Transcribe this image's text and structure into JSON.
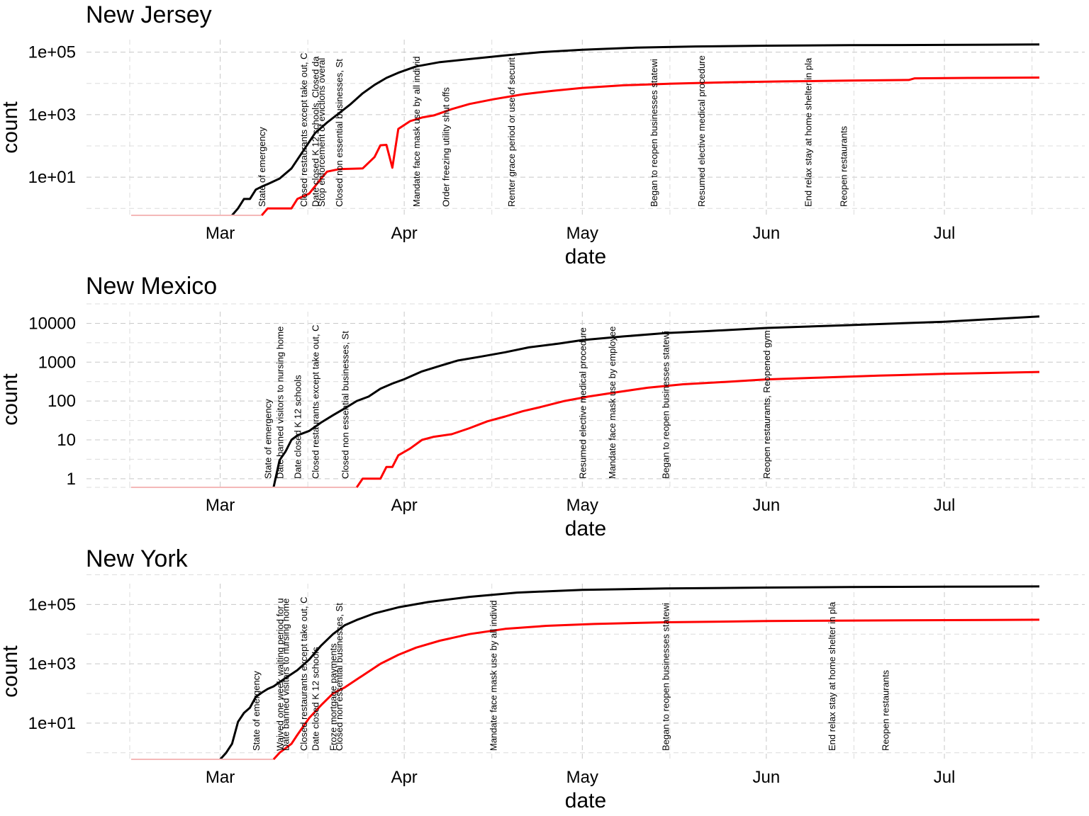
{
  "chart_data": [
    {
      "type": "line",
      "title": "New Jersey",
      "xlabel": "date",
      "ylabel": "count",
      "x_ticks": [
        "Mar",
        "Apr",
        "May",
        "Jun",
        "Jul"
      ],
      "y_scale": "log10",
      "y_ticks": [
        "1e+01",
        "1e+03",
        "1e+05"
      ],
      "ylim": [
        0.6,
        200000
      ],
      "xlim": [
        "2020-02-15",
        "2020-07-20"
      ],
      "grid": true,
      "series": [
        {
          "color": "#000000",
          "points": [
            [
              "2020-02-15",
              0.6
            ],
            [
              "2020-03-03",
              0.6
            ],
            [
              "2020-03-04",
              1
            ],
            [
              "2020-03-05",
              2
            ],
            [
              "2020-03-06",
              2
            ],
            [
              "2020-03-07",
              4
            ],
            [
              "2020-03-08",
              5
            ],
            [
              "2020-03-09",
              6
            ],
            [
              "2020-03-11",
              9
            ],
            [
              "2020-03-13",
              19
            ],
            [
              "2020-03-15",
              70
            ],
            [
              "2020-03-17",
              260
            ],
            [
              "2020-03-19",
              560
            ],
            [
              "2020-03-21",
              1100
            ],
            [
              "2020-03-23",
              2200
            ],
            [
              "2020-03-25",
              4800
            ],
            [
              "2020-03-27",
              9000
            ],
            [
              "2020-03-29",
              15000
            ],
            [
              "2020-03-31",
              22000
            ],
            [
              "2020-04-03",
              35000
            ],
            [
              "2020-04-07",
              48000
            ],
            [
              "2020-04-12",
              60000
            ],
            [
              "2020-04-18",
              79000
            ],
            [
              "2020-04-24",
              100000
            ],
            [
              "2020-05-01",
              120000
            ],
            [
              "2020-05-10",
              139000
            ],
            [
              "2020-05-20",
              152000
            ],
            [
              "2020-06-01",
              161000
            ],
            [
              "2020-06-15",
              167000
            ],
            [
              "2020-07-01",
              171000
            ],
            [
              "2020-07-17",
              176000
            ]
          ]
        },
        {
          "color": "#ff0000",
          "points": [
            [
              "2020-02-15",
              0.6
            ],
            [
              "2020-03-08",
              0.6
            ],
            [
              "2020-03-09",
              1
            ],
            [
              "2020-03-13",
              1
            ],
            [
              "2020-03-14",
              2
            ],
            [
              "2020-03-16",
              3
            ],
            [
              "2020-03-18",
              9
            ],
            [
              "2020-03-19",
              15
            ],
            [
              "2020-03-21",
              18
            ],
            [
              "2020-03-25",
              19
            ],
            [
              "2020-03-27",
              44
            ],
            [
              "2020-03-28",
              105
            ],
            [
              "2020-03-29",
              108
            ],
            [
              "2020-03-30",
              20
            ],
            [
              "2020-03-31",
              350
            ],
            [
              "2020-04-02",
              620
            ],
            [
              "2020-04-04",
              810
            ],
            [
              "2020-04-06",
              950
            ],
            [
              "2020-04-09",
              1500
            ],
            [
              "2020-04-12",
              2200
            ],
            [
              "2020-04-16",
              3100
            ],
            [
              "2020-04-21",
              4500
            ],
            [
              "2020-04-26",
              5800
            ],
            [
              "2020-05-01",
              7200
            ],
            [
              "2020-05-08",
              8700
            ],
            [
              "2020-05-16",
              9800
            ],
            [
              "2020-05-25",
              10800
            ],
            [
              "2020-06-04",
              11600
            ],
            [
              "2020-06-15",
              12300
            ],
            [
              "2020-06-25",
              12900
            ],
            [
              "2020-06-26",
              14500
            ],
            [
              "2020-07-05",
              15000
            ],
            [
              "2020-07-17",
              15400
            ]
          ]
        }
      ],
      "events": [
        {
          "date": "2020-03-08",
          "label": "State of emergency"
        },
        {
          "date": "2020-03-15",
          "label": "Closed restaurants except take out, C"
        },
        {
          "date": "2020-03-17",
          "label": "Date closed K 12 schools, Closed da"
        },
        {
          "date": "2020-03-18",
          "label": "Stop enforcement of evictions overal"
        },
        {
          "date": "2020-03-21",
          "label": "Closed non essential businesses, St"
        },
        {
          "date": "2020-04-03",
          "label": "Mandate face mask use by all individ"
        },
        {
          "date": "2020-04-08",
          "label": "Order freezing utility shut offs"
        },
        {
          "date": "2020-04-19",
          "label": "Renter grace period or use of securit"
        },
        {
          "date": "2020-05-13",
          "label": "Began to reopen businesses statewi"
        },
        {
          "date": "2020-05-21",
          "label": "Resumed elective medical procedure"
        },
        {
          "date": "2020-06-08",
          "label": "End relax stay at home shelter in pla"
        },
        {
          "date": "2020-06-14",
          "label": "Reopen restaurants"
        }
      ]
    },
    {
      "type": "line",
      "title": "New Mexico",
      "xlabel": "date",
      "ylabel": "count",
      "x_ticks": [
        "Mar",
        "Apr",
        "May",
        "Jun",
        "Jul"
      ],
      "y_scale": "log10",
      "y_ticks": [
        "1",
        "10",
        "100",
        "1000",
        "10000"
      ],
      "ylim": [
        0.6,
        30000
      ],
      "xlim": [
        "2020-02-15",
        "2020-07-20"
      ],
      "grid": true,
      "series": [
        {
          "color": "#000000",
          "points": [
            [
              "2020-02-15",
              0.6
            ],
            [
              "2020-03-10",
              0.6
            ],
            [
              "2020-03-11",
              3
            ],
            [
              "2020-03-12",
              5
            ],
            [
              "2020-03-13",
              10
            ],
            [
              "2020-03-14",
              13
            ],
            [
              "2020-03-16",
              17
            ],
            [
              "2020-03-18",
              28
            ],
            [
              "2020-03-20",
              43
            ],
            [
              "2020-03-22",
              65
            ],
            [
              "2020-03-24",
              100
            ],
            [
              "2020-03-26",
              130
            ],
            [
              "2020-03-28",
              208
            ],
            [
              "2020-03-30",
              281
            ],
            [
              "2020-04-01",
              363
            ],
            [
              "2020-04-04",
              580
            ],
            [
              "2020-04-07",
              800
            ],
            [
              "2020-04-10",
              1100
            ],
            [
              "2020-04-14",
              1400
            ],
            [
              "2020-04-18",
              1800
            ],
            [
              "2020-04-22",
              2400
            ],
            [
              "2020-04-27",
              3000
            ],
            [
              "2020-05-01",
              3700
            ],
            [
              "2020-05-08",
              4600
            ],
            [
              "2020-05-15",
              5600
            ],
            [
              "2020-05-22",
              6300
            ],
            [
              "2020-06-01",
              7600
            ],
            [
              "2020-06-15",
              9000
            ],
            [
              "2020-07-01",
              11000
            ],
            [
              "2020-07-17",
              15000
            ]
          ]
        },
        {
          "color": "#ff0000",
          "points": [
            [
              "2020-02-15",
              0.6
            ],
            [
              "2020-03-24",
              0.6
            ],
            [
              "2020-03-25",
              1
            ],
            [
              "2020-03-28",
              1
            ],
            [
              "2020-03-29",
              2
            ],
            [
              "2020-03-30",
              2
            ],
            [
              "2020-03-31",
              4
            ],
            [
              "2020-04-02",
              6
            ],
            [
              "2020-04-04",
              10
            ],
            [
              "2020-04-06",
              12
            ],
            [
              "2020-04-09",
              14
            ],
            [
              "2020-04-12",
              20
            ],
            [
              "2020-04-15",
              30
            ],
            [
              "2020-04-18",
              40
            ],
            [
              "2020-04-21",
              55
            ],
            [
              "2020-04-24",
              70
            ],
            [
              "2020-04-28",
              100
            ],
            [
              "2020-05-02",
              130
            ],
            [
              "2020-05-07",
              170
            ],
            [
              "2020-05-12",
              220
            ],
            [
              "2020-05-18",
              270
            ],
            [
              "2020-05-25",
              310
            ],
            [
              "2020-06-01",
              360
            ],
            [
              "2020-06-10",
              400
            ],
            [
              "2020-06-20",
              450
            ],
            [
              "2020-07-01",
              500
            ],
            [
              "2020-07-17",
              560
            ]
          ]
        }
      ],
      "events": [
        {
          "date": "2020-03-09",
          "label": "State of emergency"
        },
        {
          "date": "2020-03-11",
          "label": "Date banned visitors to nursing home"
        },
        {
          "date": "2020-03-14",
          "label": "Date closed K 12 schools"
        },
        {
          "date": "2020-03-17",
          "label": "Closed restaurants except take out, C"
        },
        {
          "date": "2020-03-22",
          "label": "Closed non essential businesses, St"
        },
        {
          "date": "2020-05-01",
          "label": "Resumed elective medical procedure"
        },
        {
          "date": "2020-05-06",
          "label": "Mandate face mask use by employee"
        },
        {
          "date": "2020-05-15",
          "label": "Began to reopen businesses statewi"
        },
        {
          "date": "2020-06-01",
          "label": "Reopen restaurants, Reopened gym"
        }
      ]
    },
    {
      "type": "line",
      "title": "New York",
      "xlabel": "date",
      "ylabel": "count",
      "x_ticks": [
        "Mar",
        "Apr",
        "May",
        "Jun",
        "Jul"
      ],
      "y_scale": "log10",
      "y_ticks": [
        "1e+01",
        "1e+03",
        "1e+05"
      ],
      "ylim": [
        0.6,
        500000
      ],
      "xlim": [
        "2020-02-15",
        "2020-07-20"
      ],
      "grid": true,
      "series": [
        {
          "color": "#000000",
          "points": [
            [
              "2020-02-15",
              0.6
            ],
            [
              "2020-03-01",
              0.6
            ],
            [
              "2020-03-02",
              1
            ],
            [
              "2020-03-03",
              2
            ],
            [
              "2020-03-04",
              11
            ],
            [
              "2020-03-05",
              22
            ],
            [
              "2020-03-06",
              33
            ],
            [
              "2020-03-07",
              76
            ],
            [
              "2020-03-08",
              106
            ],
            [
              "2020-03-09",
              142
            ],
            [
              "2020-03-10",
              173
            ],
            [
              "2020-03-12",
              330
            ],
            [
              "2020-03-14",
              610
            ],
            [
              "2020-03-16",
              1400
            ],
            [
              "2020-03-18",
              4100
            ],
            [
              "2020-03-20",
              10000
            ],
            [
              "2020-03-22",
              20000
            ],
            [
              "2020-03-24",
              30000
            ],
            [
              "2020-03-27",
              50000
            ],
            [
              "2020-03-31",
              80000
            ],
            [
              "2020-04-05",
              120000
            ],
            [
              "2020-04-12",
              180000
            ],
            [
              "2020-04-20",
              250000
            ],
            [
              "2020-05-01",
              310000
            ],
            [
              "2020-05-15",
              345000
            ],
            [
              "2020-06-01",
              370000
            ],
            [
              "2020-06-15",
              385000
            ],
            [
              "2020-07-01",
              395000
            ],
            [
              "2020-07-17",
              405000
            ]
          ]
        },
        {
          "color": "#ff0000",
          "points": [
            [
              "2020-02-15",
              0.6
            ],
            [
              "2020-03-10",
              0.6
            ],
            [
              "2020-03-11",
              1
            ],
            [
              "2020-03-13",
              2
            ],
            [
              "2020-03-14",
              4
            ],
            [
              "2020-03-16",
              15
            ],
            [
              "2020-03-18",
              40
            ],
            [
              "2020-03-20",
              100
            ],
            [
              "2020-03-22",
              160
            ],
            [
              "2020-03-25",
              400
            ],
            [
              "2020-03-28",
              1000
            ],
            [
              "2020-03-31",
              2000
            ],
            [
              "2020-04-03",
              3500
            ],
            [
              "2020-04-07",
              6000
            ],
            [
              "2020-04-12",
              10000
            ],
            [
              "2020-04-18",
              15000
            ],
            [
              "2020-04-25",
              19000
            ],
            [
              "2020-05-03",
              22000
            ],
            [
              "2020-05-15",
              25000
            ],
            [
              "2020-06-01",
              27500
            ],
            [
              "2020-06-15",
              28500
            ],
            [
              "2020-07-01",
              29500
            ],
            [
              "2020-07-17",
              30500
            ]
          ]
        }
      ],
      "events": [
        {
          "date": "2020-03-07",
          "label": "State of emergency"
        },
        {
          "date": "2020-03-11",
          "label": "Waived one week waiting period for u"
        },
        {
          "date": "2020-03-12",
          "label": "Date banned visitors to nursing home"
        },
        {
          "date": "2020-03-15",
          "label": "Closed restaurants except take out, C"
        },
        {
          "date": "2020-03-17",
          "label": "Date closed K 12 schools"
        },
        {
          "date": "2020-03-20",
          "label": "Froze mortgage payments"
        },
        {
          "date": "2020-03-21",
          "label": "Closed non essential businesses, St"
        },
        {
          "date": "2020-04-16",
          "label": "Mandate face mask use by all individ"
        },
        {
          "date": "2020-05-15",
          "label": "Began to reopen businesses statewi"
        },
        {
          "date": "2020-06-12",
          "label": "End relax stay at home shelter in pla"
        },
        {
          "date": "2020-06-21",
          "label": "Reopen restaurants"
        }
      ]
    }
  ]
}
